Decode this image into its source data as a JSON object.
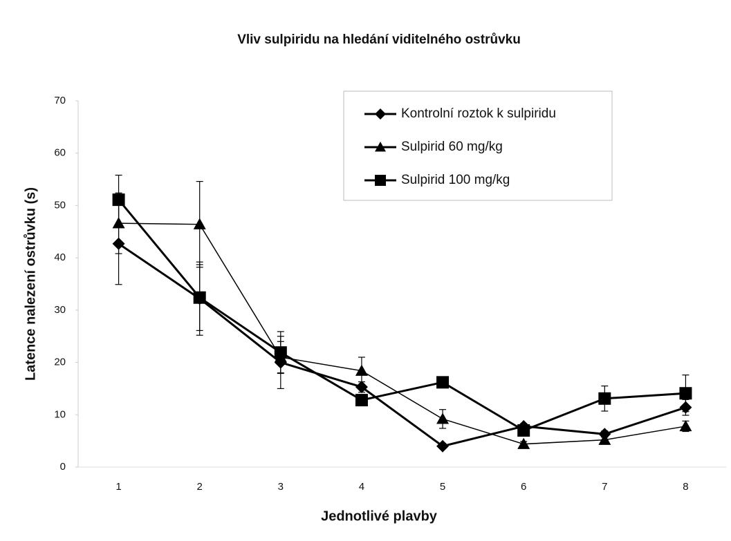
{
  "chart_data": {
    "type": "line",
    "title": "Vliv sulpiridu na hledání viditelného ostrůvku",
    "x_label": "Jednotlivé plavby",
    "y_label": "Latence nalezení ostrůvku (s)",
    "categories": [
      "1",
      "2",
      "3",
      "4",
      "5",
      "6",
      "7",
      "8"
    ],
    "ylim": [
      0,
      70
    ],
    "yticks": [
      0,
      10,
      20,
      30,
      40,
      50,
      60,
      70
    ],
    "legend": "top-right",
    "series": [
      {
        "name": "Kontrolní roztok k sulpiridu",
        "color": "#000000",
        "marker": "diamond",
        "values": [
          42.7,
          32.2,
          20,
          15.3,
          4,
          7.8,
          6.3,
          11.4
        ],
        "errors": [
          7.8,
          7,
          5,
          1,
          0.5,
          0.5,
          0.6,
          1.5
        ]
      },
      {
        "name": "Sulpirid 60 mg/kg",
        "color": "#000000",
        "marker": "triangle",
        "values": [
          46.6,
          46.4,
          21,
          18.4,
          9.2,
          4.4,
          5.2,
          7.8
        ],
        "errors": [
          5.8,
          8.2,
          3,
          2.6,
          1.8,
          0.5,
          0.6,
          1
        ]
      },
      {
        "name": "Sulpirid 100 mg/kg",
        "color": "#000000",
        "marker": "square",
        "values": [
          51.1,
          32.4,
          21.9,
          12.8,
          16.2,
          7,
          13.1,
          14.1
        ],
        "errors": [
          4.7,
          6.3,
          4,
          1,
          1,
          0.6,
          2.4,
          3.5
        ]
      }
    ]
  }
}
